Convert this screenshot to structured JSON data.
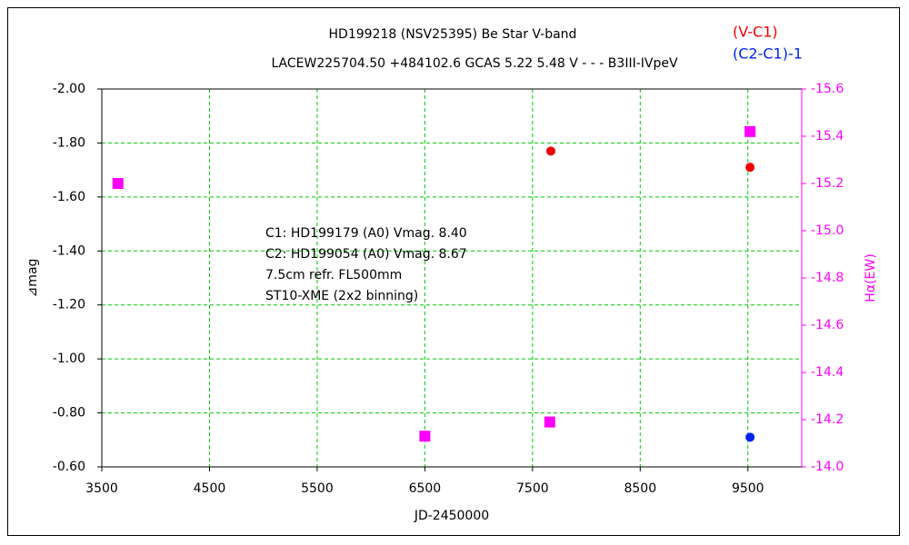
{
  "chart_data": {
    "type": "scatter",
    "title": "HD199218 (NSV25395)    Be Star    V-band",
    "subtitle": "LACEW225704.50 +484102.6 GCAS 5.22 5.48 V - - - B3III-IVpeV",
    "annotations": [
      "C1: HD199179 (A0) Vmag. 8.40",
      "C2: HD199054 (A0) Vmag. 8.67",
      "7.5cm refr. FL500mm",
      "ST10-XME (2x2 binning)"
    ],
    "xlabel": "JD-2450000",
    "ylabel": "⊿mag",
    "y2label": "Hα(EW)",
    "xlim": [
      3500,
      10000
    ],
    "xticks": [
      3500,
      4500,
      5500,
      6500,
      7500,
      8500,
      9500
    ],
    "ylim": [
      -0.6,
      -2.0
    ],
    "yticks": [
      {
        "value": -2.0,
        "label": "-2.00"
      },
      {
        "value": -1.8,
        "label": "-1.80"
      },
      {
        "value": -1.6,
        "label": "-1.60"
      },
      {
        "value": -1.4,
        "label": "-1.40"
      },
      {
        "value": -1.2,
        "label": "-1.20"
      },
      {
        "value": -1.0,
        "label": "-1.00"
      },
      {
        "value": -0.8,
        "label": "-0.80"
      },
      {
        "value": -0.6,
        "label": "-0.60"
      }
    ],
    "y2lim": [
      -14.0,
      -15.6
    ],
    "y2ticks": [
      -15.6,
      -15.4,
      -15.2,
      {
        "value": -15.0,
        "label": "-15.0"
      },
      -14.8,
      -14.6,
      -14.4,
      -14.2,
      {
        "value": -14.0,
        "label": "-14.0"
      }
    ],
    "y2color": "#ff00ff",
    "grid": true,
    "grid_color": "#00cc00",
    "series": [
      {
        "name": "(V-C1)",
        "color": "#ee0000",
        "marker": "circle",
        "x": [
          7670,
          9520
        ],
        "values": [
          -1.77,
          -1.71
        ]
      },
      {
        "name": "(C2-C1)-1",
        "color": "#0022ee",
        "marker": "circle",
        "x": [
          9520
        ],
        "values": [
          -0.71
        ]
      },
      {
        "color": "#ff00ff",
        "marker": "square",
        "axis": "y2",
        "x": [
          3650,
          6500,
          7660,
          9520
        ],
        "values": [
          -15.2,
          -14.13,
          -14.19,
          -15.42
        ]
      }
    ]
  }
}
